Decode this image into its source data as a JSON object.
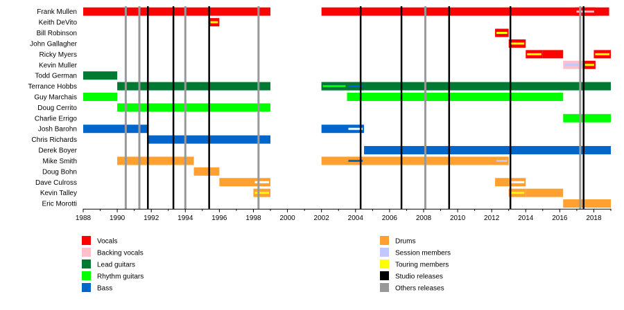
{
  "chart_data": {
    "type": "timeline",
    "title": "",
    "xlabel": "",
    "ylabel": "",
    "xlim": [
      1988,
      2019
    ],
    "x_ticks": [
      1988,
      1990,
      1992,
      1994,
      1996,
      1998,
      2000,
      2002,
      2004,
      2006,
      2008,
      2010,
      2012,
      2014,
      2016,
      2018
    ],
    "grid": false,
    "legend_position": "bottom",
    "colors": {
      "vocals": "#ff0000",
      "backing": "#ffc0cb",
      "lead": "#007a33",
      "rhythm": "#00ff00",
      "bass": "#0066cc",
      "drums": "#ffa030",
      "session": "#c0c8ff",
      "touring": "#ffff00",
      "studio": "#000000",
      "other": "#999999"
    },
    "legend": [
      {
        "key": "vocals",
        "label": "Vocals"
      },
      {
        "key": "backing",
        "label": "Backing vocals"
      },
      {
        "key": "lead",
        "label": "Lead guitars"
      },
      {
        "key": "rhythm",
        "label": "Rhythm guitars"
      },
      {
        "key": "bass",
        "label": "Bass"
      },
      {
        "key": "drums",
        "label": "Drums"
      },
      {
        "key": "session",
        "label": "Session members"
      },
      {
        "key": "touring",
        "label": "Touring members"
      },
      {
        "key": "studio",
        "label": "Studio releases"
      },
      {
        "key": "other",
        "label": "Others releases"
      }
    ],
    "releases": {
      "studio": [
        1991.8,
        1993.3,
        1995.4,
        2004.3,
        2006.7,
        2009.5,
        2013.1,
        2017.4
      ],
      "other": [
        1990.5,
        1991.3,
        1994.0,
        1998.3,
        2008.1,
        2017.2
      ]
    },
    "members": [
      {
        "name": "Frank Mullen",
        "periods": [
          {
            "start": 1988,
            "end": 1999,
            "role": "vocals"
          },
          {
            "start": 2002,
            "end": 2018.9,
            "role": "vocals"
          },
          {
            "start": 2016.9,
            "end": 2018.1,
            "role": "vocals",
            "inner": "backing"
          }
        ]
      },
      {
        "name": "Keith DeVito",
        "periods": [
          {
            "start": 1995.4,
            "end": 1996.0,
            "role": "vocals",
            "inner": "touring"
          }
        ]
      },
      {
        "name": "Bill Robinson",
        "periods": [
          {
            "start": 2012.2,
            "end": 2013.0,
            "role": "vocals",
            "inner": "touring"
          }
        ]
      },
      {
        "name": "John Gallagher",
        "periods": [
          {
            "start": 2013.0,
            "end": 2014.0,
            "role": "vocals",
            "inner": "touring"
          }
        ]
      },
      {
        "name": "Ricky Myers",
        "periods": [
          {
            "start": 2014.0,
            "end": 2015.0,
            "role": "vocals",
            "inner": "touring"
          },
          {
            "start": 2015.0,
            "end": 2016.2,
            "role": "vocals"
          },
          {
            "start": 2018.0,
            "end": 2019.0,
            "role": "vocals",
            "inner": "touring"
          }
        ]
      },
      {
        "name": "Kevin Muller",
        "periods": [
          {
            "start": 2016.2,
            "end": 2017.4,
            "role": "backing",
            "inner": "session"
          },
          {
            "start": 2017.4,
            "end": 2018.1,
            "role": "vocals",
            "inner": "touring"
          }
        ]
      },
      {
        "name": "Todd German",
        "periods": [
          {
            "start": 1988,
            "end": 1990,
            "role": "lead"
          }
        ]
      },
      {
        "name": "Terrance Hobbs",
        "periods": [
          {
            "start": 1990,
            "end": 1999,
            "role": "lead"
          },
          {
            "start": 2002,
            "end": 2019,
            "role": "lead"
          },
          {
            "start": 2002,
            "end": 2003.5,
            "role": "lead",
            "inner": "rhythm"
          },
          {
            "start": 2003.5,
            "end": 2004.5,
            "role": "lead",
            "inner": "bass"
          }
        ]
      },
      {
        "name": "Guy Marchais",
        "periods": [
          {
            "start": 1988,
            "end": 1990,
            "role": "rhythm"
          },
          {
            "start": 2003.5,
            "end": 2016.2,
            "role": "rhythm"
          }
        ]
      },
      {
        "name": "Doug Cerrito",
        "periods": [
          {
            "start": 1990,
            "end": 1999,
            "role": "rhythm"
          }
        ]
      },
      {
        "name": "Charlie Errigo",
        "periods": [
          {
            "start": 2016.2,
            "end": 2019,
            "role": "rhythm"
          }
        ]
      },
      {
        "name": "Josh Barohn",
        "periods": [
          {
            "start": 1988,
            "end": 1991.8,
            "role": "bass"
          },
          {
            "start": 2002,
            "end": 2003.5,
            "role": "bass"
          },
          {
            "start": 2003.5,
            "end": 2004.5,
            "role": "bass",
            "inner": "white"
          }
        ]
      },
      {
        "name": "Chris Richards",
        "periods": [
          {
            "start": 1991.8,
            "end": 1999,
            "role": "bass"
          }
        ]
      },
      {
        "name": "Derek Boyer",
        "periods": [
          {
            "start": 2004.5,
            "end": 2019,
            "role": "bass"
          }
        ]
      },
      {
        "name": "Mike Smith",
        "periods": [
          {
            "start": 1990,
            "end": 1994.5,
            "role": "drums"
          },
          {
            "start": 2002,
            "end": 2013.0,
            "role": "drums"
          },
          {
            "start": 2003.5,
            "end": 2004.5,
            "role": "drums",
            "inner": "bass"
          },
          {
            "start": 2012.2,
            "end": 2013.0,
            "role": "drums",
            "inner": "session"
          }
        ]
      },
      {
        "name": "Doug Bohn",
        "periods": [
          {
            "start": 1994.5,
            "end": 1996.0,
            "role": "drums"
          }
        ]
      },
      {
        "name": "Dave Culross",
        "periods": [
          {
            "start": 1996.0,
            "end": 1998.0,
            "role": "drums"
          },
          {
            "start": 1998.0,
            "end": 1999.0,
            "role": "drums",
            "inner": "white"
          },
          {
            "start": 2012.2,
            "end": 2013.0,
            "role": "drums"
          },
          {
            "start": 2013.0,
            "end": 2014.0,
            "role": "drums",
            "inner": "white"
          }
        ]
      },
      {
        "name": "Kevin Talley",
        "periods": [
          {
            "start": 1998.0,
            "end": 1999.0,
            "role": "drums",
            "inner": "touring"
          },
          {
            "start": 2013.0,
            "end": 2014.0,
            "role": "drums",
            "inner": "touring"
          },
          {
            "start": 2014.0,
            "end": 2016.2,
            "role": "drums"
          }
        ]
      },
      {
        "name": "Eric Morotti",
        "periods": [
          {
            "start": 2016.2,
            "end": 2019,
            "role": "drums"
          }
        ]
      }
    ]
  }
}
